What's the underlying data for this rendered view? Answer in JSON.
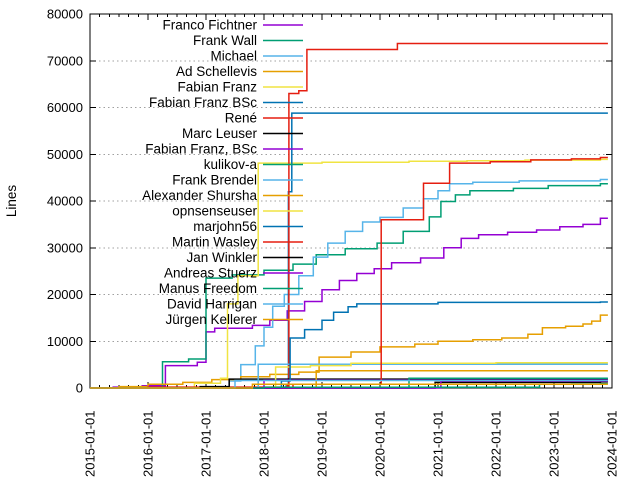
{
  "chart_data": {
    "type": "line",
    "subtype": "step-after-cumulative",
    "title": "",
    "xlabel": "",
    "ylabel": "Lines",
    "grid": "horizontal-dotted",
    "legend_position": "top-left-inside",
    "ylim": [
      0,
      80000
    ],
    "y_tick_values": [
      0,
      10000,
      20000,
      30000,
      40000,
      50000,
      60000,
      70000,
      80000
    ],
    "y_tick_labels": [
      "0",
      "10000",
      "20000",
      "30000",
      "40000",
      "50000",
      "60000",
      "70000",
      "80000"
    ],
    "x_tick_labels": [
      "2015-01-01",
      "2016-01-01",
      "2017-01-01",
      "2018-01-01",
      "2019-01-01",
      "2020-01-01",
      "2021-01-01",
      "2022-01-01",
      "2023-01-01",
      "2024-01-01"
    ],
    "x_range_years": [
      2015,
      2024
    ],
    "colors": {
      "purple": "#9400d3",
      "green": "#009e73",
      "skyblue": "#56b4e9",
      "orange": "#e69f00",
      "yellow": "#f0e442",
      "blue": "#0072b2",
      "red": "#e51e10",
      "black": "#000000",
      "grid": "#a0a0a0"
    },
    "series": [
      {
        "name": "Franco Fichtner",
        "color": "#9400d3",
        "points": [
          [
            2015.0,
            0
          ],
          [
            2015.4,
            200
          ],
          [
            2015.9,
            500
          ],
          [
            2016.3,
            4800
          ],
          [
            2016.85,
            5500
          ],
          [
            2017.0,
            12000
          ],
          [
            2017.15,
            12800
          ],
          [
            2017.8,
            13400
          ],
          [
            2018.1,
            14500
          ],
          [
            2018.4,
            16500
          ],
          [
            2018.7,
            18500
          ],
          [
            2019.0,
            21000
          ],
          [
            2019.3,
            23000
          ],
          [
            2019.6,
            24500
          ],
          [
            2019.9,
            25500
          ],
          [
            2020.2,
            26800
          ],
          [
            2020.7,
            27800
          ],
          [
            2021.1,
            30000
          ],
          [
            2021.4,
            32000
          ],
          [
            2021.7,
            32800
          ],
          [
            2022.2,
            33300
          ],
          [
            2022.7,
            33800
          ],
          [
            2023.1,
            34500
          ],
          [
            2023.5,
            35000
          ],
          [
            2023.8,
            36300
          ]
        ]
      },
      {
        "name": "Frank Wall",
        "color": "#009e73",
        "points": [
          [
            2015.0,
            0
          ],
          [
            2016.25,
            5600
          ],
          [
            2016.7,
            6200
          ],
          [
            2017.0,
            23500
          ],
          [
            2017.45,
            24200
          ],
          [
            2018.0,
            25200
          ],
          [
            2018.5,
            26500
          ],
          [
            2018.9,
            28500
          ],
          [
            2019.4,
            29800
          ],
          [
            2019.95,
            31000
          ],
          [
            2020.4,
            33500
          ],
          [
            2020.85,
            36600
          ],
          [
            2021.05,
            39900
          ],
          [
            2021.3,
            41300
          ],
          [
            2021.55,
            42200
          ],
          [
            2022.3,
            42700
          ],
          [
            2022.9,
            43300
          ],
          [
            2023.8,
            43700
          ]
        ]
      },
      {
        "name": "Michael",
        "color": "#56b4e9",
        "points": [
          [
            2015.0,
            0
          ],
          [
            2017.4,
            1500
          ],
          [
            2017.6,
            5000
          ],
          [
            2017.85,
            9000
          ],
          [
            2018.0,
            13000
          ],
          [
            2018.15,
            17500
          ],
          [
            2018.35,
            20000
          ],
          [
            2018.6,
            24000
          ],
          [
            2018.85,
            28000
          ],
          [
            2019.1,
            31000
          ],
          [
            2019.4,
            33500
          ],
          [
            2019.7,
            35500
          ],
          [
            2020.0,
            36500
          ],
          [
            2020.4,
            38500
          ],
          [
            2020.75,
            40500
          ],
          [
            2021.0,
            42200
          ],
          [
            2021.2,
            43700
          ],
          [
            2021.6,
            44000
          ],
          [
            2022.4,
            44300
          ],
          [
            2023.8,
            44600
          ]
        ]
      },
      {
        "name": "Ad Schellevis",
        "color": "#e69f00",
        "points": [
          [
            2015.0,
            0
          ],
          [
            2015.5,
            300
          ],
          [
            2016.0,
            800
          ],
          [
            2016.6,
            1200
          ],
          [
            2017.1,
            1800
          ],
          [
            2017.6,
            2400
          ],
          [
            2018.1,
            2900
          ],
          [
            2018.6,
            3400
          ],
          [
            2018.95,
            6600
          ],
          [
            2019.5,
            7700
          ],
          [
            2020.0,
            8800
          ],
          [
            2020.6,
            9400
          ],
          [
            2021.0,
            10000
          ],
          [
            2021.6,
            10300
          ],
          [
            2022.1,
            10700
          ],
          [
            2022.55,
            11500
          ],
          [
            2022.8,
            12900
          ],
          [
            2023.2,
            13200
          ],
          [
            2023.5,
            13700
          ],
          [
            2023.65,
            14300
          ],
          [
            2023.8,
            15600
          ]
        ]
      },
      {
        "name": "Fabian Franz",
        "color": "#f0e442",
        "points": [
          [
            2015.0,
            0
          ],
          [
            2016.8,
            1000
          ],
          [
            2017.25,
            2100
          ],
          [
            2017.37,
            18000
          ],
          [
            2017.55,
            24000
          ],
          [
            2017.9,
            48100
          ],
          [
            2019.0,
            48300
          ],
          [
            2020.5,
            48500
          ],
          [
            2021.5,
            48600
          ],
          [
            2022.5,
            48750
          ],
          [
            2023.8,
            48900
          ]
        ]
      },
      {
        "name": "Fabian Franz BSc",
        "color": "#0072b2",
        "points": [
          [
            2015.0,
            0
          ],
          [
            2018.38,
            400
          ],
          [
            2018.42,
            42000
          ],
          [
            2018.48,
            58800
          ],
          [
            2023.8,
            58800
          ]
        ]
      },
      {
        "name": "René",
        "color": "#e51e10",
        "points": [
          [
            2015.0,
            0
          ],
          [
            2016.0,
            200
          ],
          [
            2018.4,
            500
          ],
          [
            2018.43,
            63000
          ],
          [
            2018.6,
            63600
          ],
          [
            2018.74,
            72400
          ],
          [
            2020.3,
            73700
          ],
          [
            2023.8,
            73700
          ]
        ]
      },
      {
        "name": "Marc Leuser",
        "color": "#000000",
        "points": [
          [
            2015.0,
            0
          ],
          [
            2016.9,
            300
          ],
          [
            2017.4,
            1900
          ],
          [
            2023.8,
            1900
          ]
        ]
      },
      {
        "name": "Fabian Franz, BSc",
        "color": "#9400d3",
        "points": [
          [
            2015.0,
            0
          ],
          [
            2018.0,
            1700
          ],
          [
            2023.8,
            1700
          ]
        ]
      },
      {
        "name": "kulikov-a",
        "color": "#009e73",
        "points": [
          [
            2015.0,
            0
          ],
          [
            2020.5,
            2100
          ],
          [
            2023.8,
            2100
          ]
        ]
      },
      {
        "name": "Frank Brendel",
        "color": "#56b4e9",
        "points": [
          [
            2015.0,
            0
          ],
          [
            2017.9,
            5100
          ],
          [
            2023.8,
            5100
          ]
        ]
      },
      {
        "name": "Alexander Shursha",
        "color": "#e69f00",
        "points": [
          [
            2015.0,
            0
          ],
          [
            2018.9,
            3700
          ],
          [
            2023.8,
            3700
          ]
        ]
      },
      {
        "name": "opnsenseuser",
        "color": "#f0e442",
        "points": [
          [
            2015.0,
            0
          ],
          [
            2018.2,
            4500
          ],
          [
            2018.8,
            4800
          ],
          [
            2019.5,
            5300
          ],
          [
            2022.0,
            5400
          ],
          [
            2023.8,
            5400
          ]
        ]
      },
      {
        "name": "marjohn56",
        "color": "#0072b2",
        "points": [
          [
            2015.0,
            0
          ],
          [
            2018.3,
            1500
          ],
          [
            2018.45,
            10700
          ],
          [
            2018.7,
            12500
          ],
          [
            2019.0,
            14500
          ],
          [
            2019.2,
            16200
          ],
          [
            2019.45,
            17400
          ],
          [
            2019.6,
            18000
          ],
          [
            2021.0,
            18300
          ],
          [
            2023.8,
            18400
          ]
        ]
      },
      {
        "name": "Martin Wasley",
        "color": "#e51e10",
        "points": [
          [
            2015.0,
            0
          ],
          [
            2018.5,
            800
          ],
          [
            2020.02,
            36000
          ],
          [
            2020.75,
            43800
          ],
          [
            2021.2,
            48100
          ],
          [
            2021.9,
            48400
          ],
          [
            2022.6,
            48800
          ],
          [
            2023.3,
            49000
          ],
          [
            2023.8,
            49300
          ]
        ]
      },
      {
        "name": "Jan Winkler",
        "color": "#000000",
        "points": [
          [
            2015.0,
            0
          ],
          [
            2020.95,
            1200
          ],
          [
            2023.8,
            1300
          ]
        ]
      },
      {
        "name": "Andreas Stuerz",
        "color": "#9400d3",
        "points": [
          [
            2015.0,
            0
          ],
          [
            2021.05,
            1500
          ],
          [
            2023.8,
            1500
          ]
        ]
      },
      {
        "name": "Manus Freedom",
        "color": "#009e73",
        "points": [
          [
            2015.0,
            0
          ],
          [
            2018.0,
            150
          ],
          [
            2022.75,
            800
          ],
          [
            2023.3,
            850
          ],
          [
            2023.8,
            900
          ]
        ]
      },
      {
        "name": "David Harrigan",
        "color": "#56b4e9",
        "points": [
          [
            2015.0,
            0
          ],
          [
            2017.5,
            1600
          ],
          [
            2023.8,
            1600
          ]
        ]
      },
      {
        "name": "Jürgen Kellerer",
        "color": "#e69f00",
        "points": [
          [
            2015.0,
            0
          ],
          [
            2017.8,
            800
          ],
          [
            2023.8,
            800
          ]
        ]
      }
    ]
  }
}
